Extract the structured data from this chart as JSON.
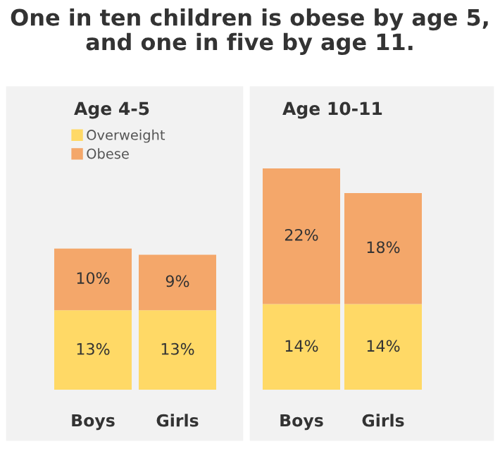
{
  "chart_data": [
    {
      "type": "bar",
      "title": "Age 4-5",
      "annotations": [
        "One in ten children is obese by age 5,\nand one in five by age 11."
      ],
      "categories": [
        "Boys",
        "Girls"
      ],
      "stacked": true,
      "tick_labels": "x",
      "legend": "top left",
      "series": [
        {
          "name": "Overweight",
          "color": "#ffd966",
          "values": [
            13,
            13
          ],
          "value_labels": [
            "13%",
            "13%"
          ]
        },
        {
          "name": "Obese",
          "color": "#f4a76a",
          "values": [
            10,
            9
          ],
          "value_labels": [
            "10%",
            "9%"
          ]
        }
      ]
    },
    {
      "type": "bar",
      "title": "Age 10-11",
      "categories": [
        "Boys",
        "Girls"
      ],
      "stacked": true,
      "tick_labels": "x",
      "series": [
        {
          "color": "#ffd966",
          "values": [
            14,
            14
          ],
          "value_labels": [
            "14%",
            "14%"
          ]
        },
        {
          "color": "#f4a76a",
          "values": [
            22,
            18
          ],
          "value_labels": [
            "22%",
            "18%"
          ]
        }
      ]
    }
  ]
}
